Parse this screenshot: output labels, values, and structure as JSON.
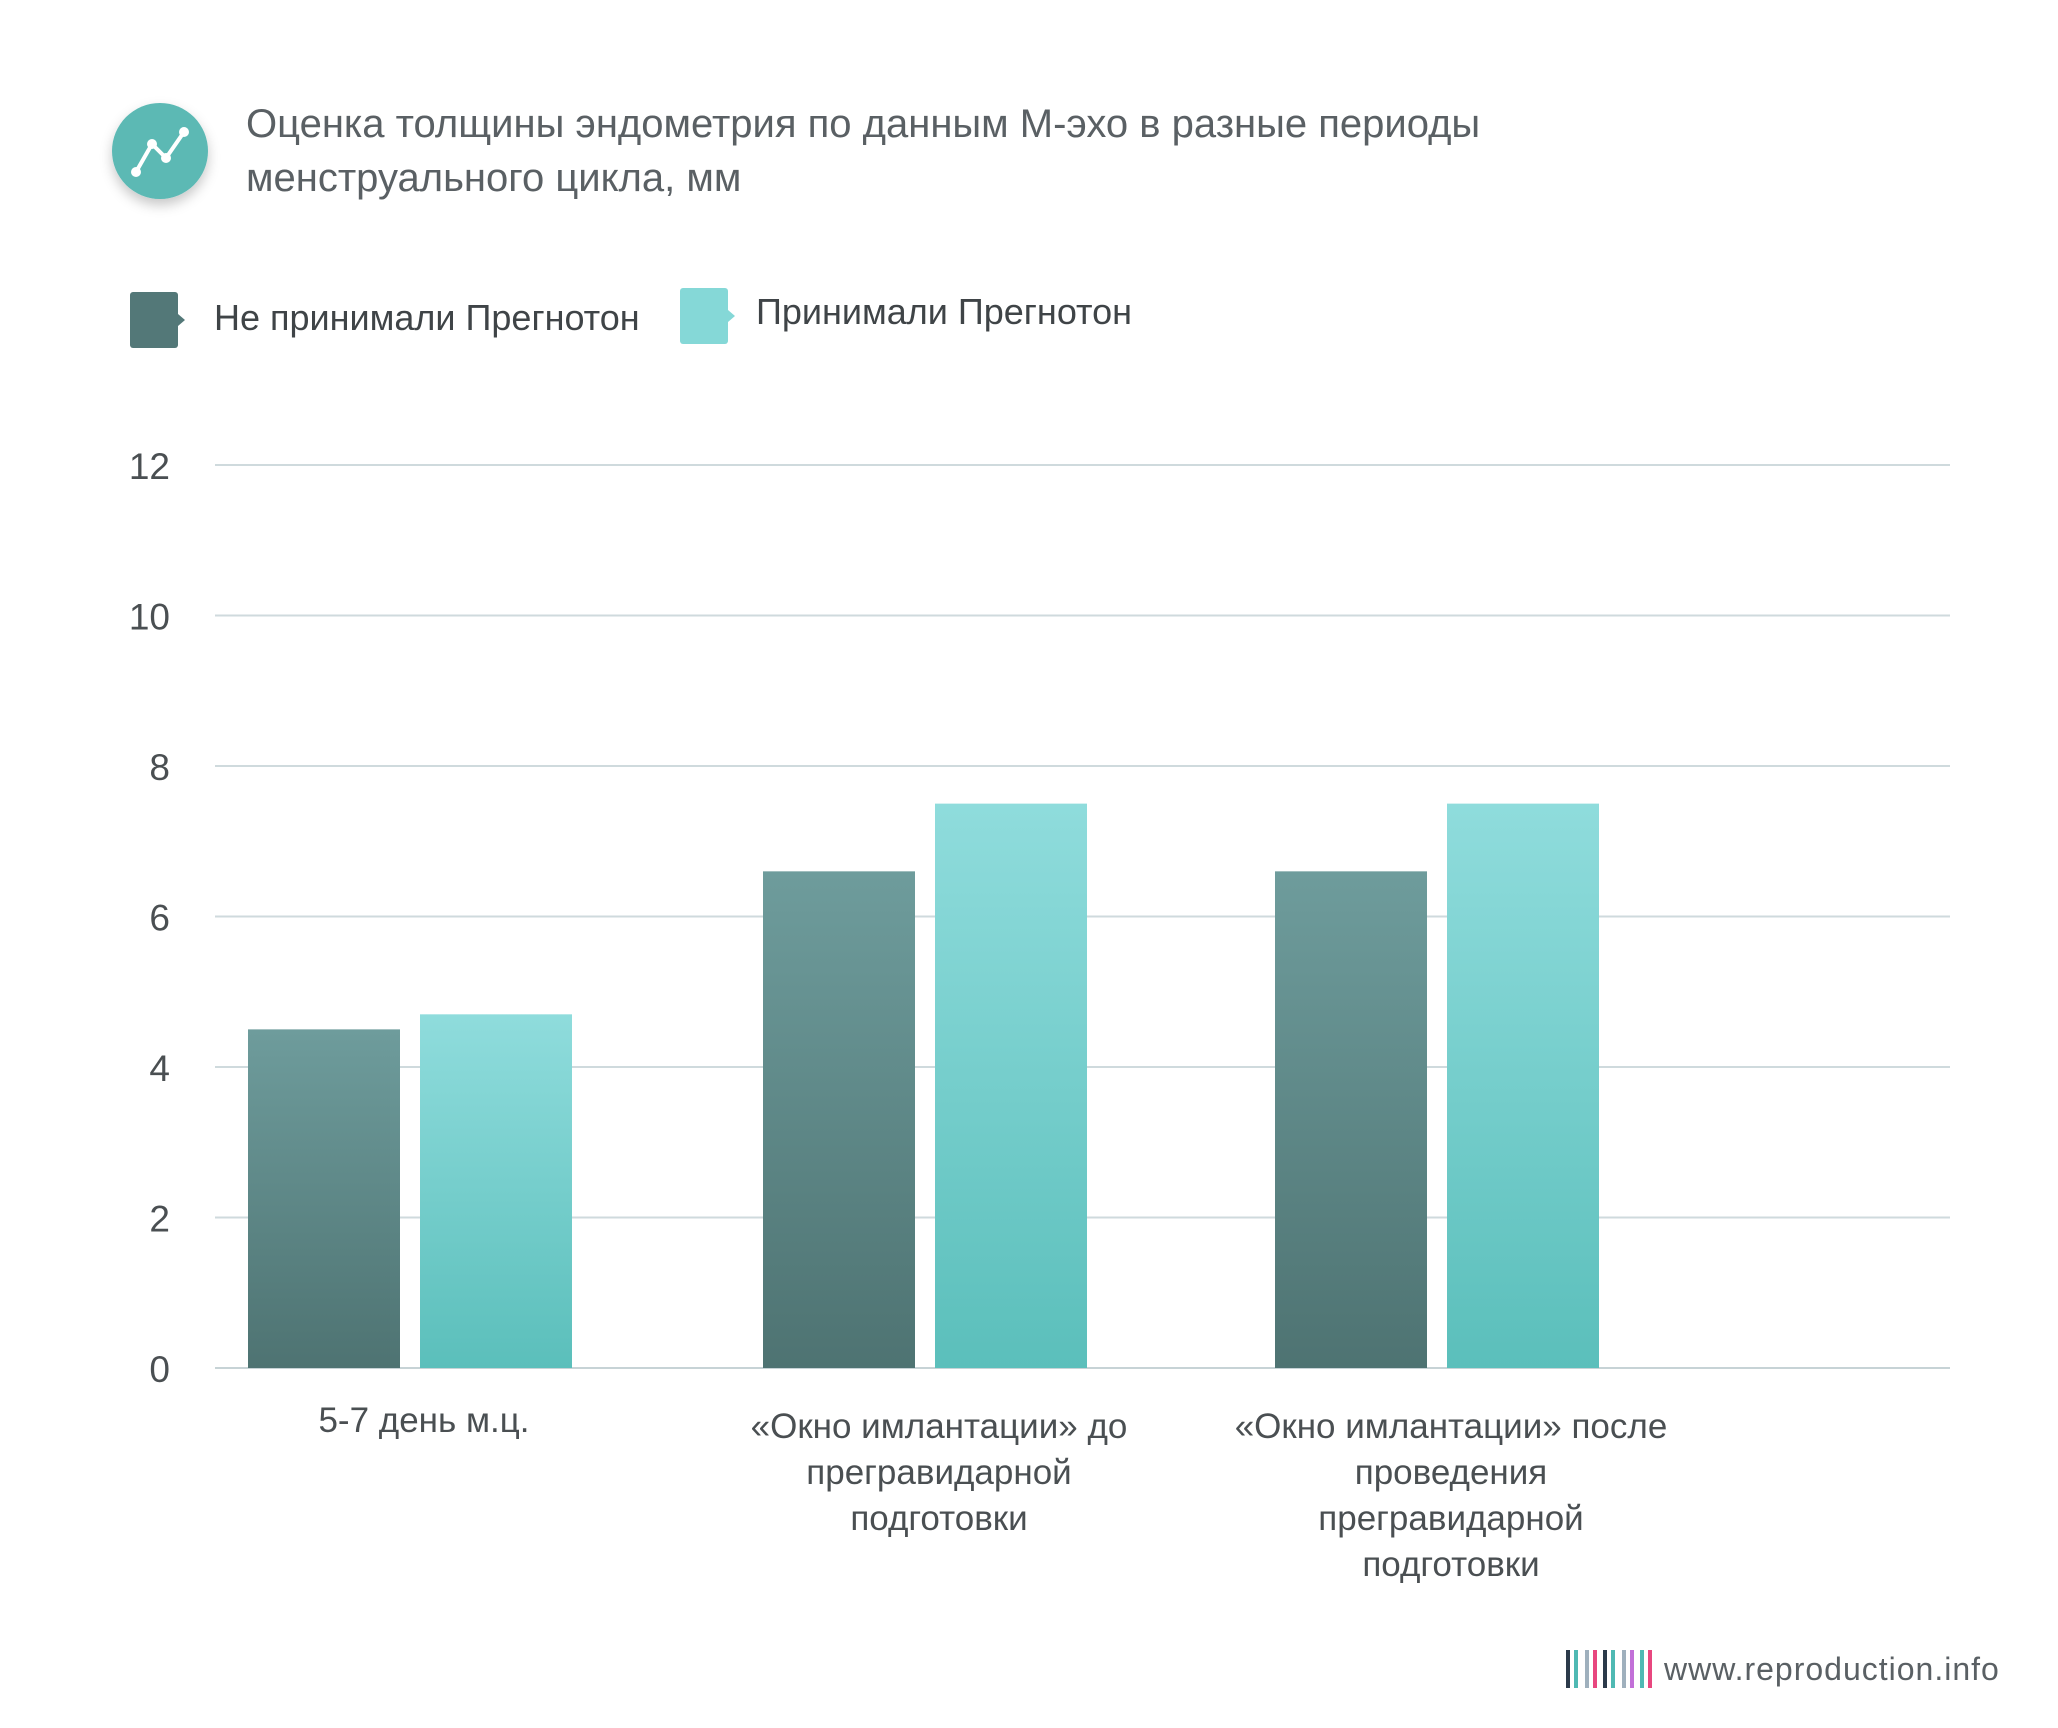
{
  "header": {
    "title_lines": [
      "Оценка толщины эндометрия по данным М-эхо в разные периоды",
      "менструального цикла, мм"
    ],
    "icon": "line-chart-icon",
    "icon_color": "#5bb9b4"
  },
  "legend": [
    {
      "label": "Не принимали Прегнотон",
      "color": "#537878"
    },
    {
      "label": "Принимали Прегнотон",
      "color": "#85d8d7"
    }
  ],
  "chart_data": {
    "type": "bar",
    "categories": [
      [
        "5-7 день м.ц."
      ],
      [
        "«Окно имлантации» до",
        "прегравидарной",
        "подготовки"
      ],
      [
        "«Окно имлантации» после",
        "проведения",
        "прегравидарной",
        "подготовки"
      ]
    ],
    "series": [
      {
        "name": "Не принимали Прегнотон",
        "values": [
          4.5,
          6.6,
          6.6
        ],
        "color_top": "#6e9c9c",
        "color_bottom": "#4e7372"
      },
      {
        "name": "Принимали Прегнотон",
        "values": [
          4.7,
          7.5,
          7.5
        ],
        "color_top": "#8fdcdc",
        "color_bottom": "#5bbfbb"
      }
    ],
    "ylim": [
      0,
      12
    ],
    "yticks": [
      "0",
      "2",
      "4",
      "6",
      "8",
      "10",
      "12"
    ],
    "grid": true,
    "legend_position": "top-left"
  },
  "footer": {
    "site": "www.reproduction.info",
    "logo": "barcode-logo-icon"
  }
}
